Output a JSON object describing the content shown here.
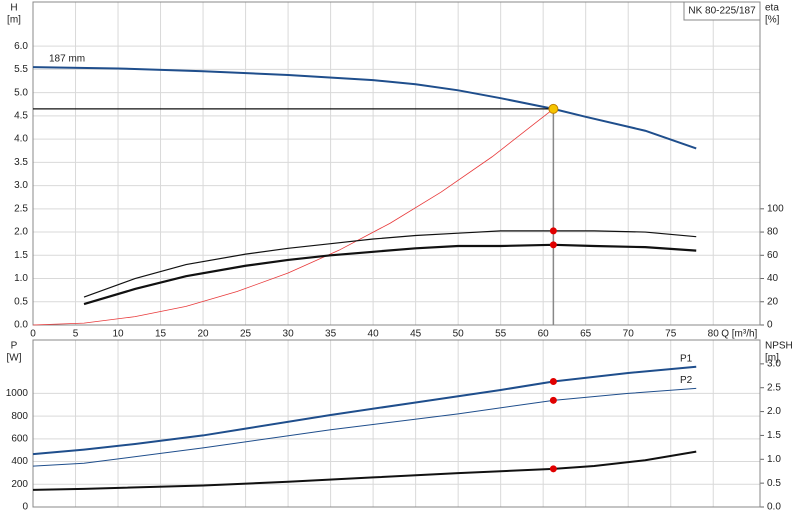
{
  "chart_data": [
    {
      "type": "line",
      "title": "NK 80-225/187",
      "y_label": "H",
      "y_unit": "[m]",
      "y2_label": "eta",
      "y2_unit": "[%]",
      "x_label": "Q [m³/h]",
      "xlim": [
        0,
        85.5
      ],
      "xticks": [
        0,
        5,
        10,
        15,
        20,
        25,
        30,
        35,
        40,
        45,
        50,
        55,
        60,
        65,
        70,
        75,
        80
      ],
      "ylim": [
        0,
        6.95
      ],
      "yticks": [
        {
          "value": 0,
          "label": "0.0"
        },
        0.5,
        {
          "value": 1,
          "label": "1.0"
        },
        1.5,
        {
          "value": 2,
          "label": "2.0"
        },
        2.5,
        {
          "value": 3,
          "label": "3.0"
        },
        3.5,
        {
          "value": 4,
          "label": "4.0"
        },
        4.5,
        {
          "value": 5,
          "label": "5.0"
        },
        5.5,
        {
          "value": 6,
          "label": "6.0"
        }
      ],
      "y2lim": [
        0,
        278
      ],
      "y2ticks": [
        0,
        20,
        40,
        60,
        80,
        100
      ],
      "grid": true,
      "series": [
        {
          "name": "187 mm",
          "color": "#1f4e8c",
          "width": 2,
          "x": [
            0,
            10,
            20,
            30,
            40,
            45,
            50,
            55,
            61.2,
            65,
            72,
            78
          ],
          "values": [
            5.55,
            5.52,
            5.46,
            5.38,
            5.27,
            5.18,
            5.05,
            4.88,
            4.65,
            4.48,
            4.18,
            3.8
          ]
        },
        {
          "color": "#e8393a",
          "width": 0.8,
          "x": [
            0,
            6,
            12,
            18,
            24,
            30,
            36,
            42,
            48,
            54,
            61.2
          ],
          "values": [
            0,
            0.04,
            0.18,
            0.4,
            0.72,
            1.12,
            1.61,
            2.19,
            2.86,
            3.62,
            4.65
          ]
        },
        {
          "color": "#111",
          "width": 1.2,
          "axis": "y2",
          "x": [
            6,
            12,
            18,
            25,
            30,
            35,
            40,
            45,
            50,
            55,
            61.2,
            66,
            72,
            78
          ],
          "values": [
            24,
            40,
            52,
            61,
            66,
            70,
            74,
            77,
            79,
            81,
            81,
            81,
            80,
            76
          ]
        },
        {
          "color": "#111",
          "width": 2.2,
          "axis": "y2",
          "x": [
            6,
            12,
            18,
            25,
            30,
            35,
            40,
            45,
            50,
            55,
            61.2,
            66,
            72,
            78
          ],
          "values": [
            18,
            31,
            42,
            51,
            56,
            60,
            63,
            66,
            68,
            68,
            69,
            68,
            67,
            64
          ]
        }
      ],
      "duty_point": {
        "x": 61.2,
        "y": 4.65,
        "color": "#f5c400"
      },
      "points": [
        {
          "x": 61.2,
          "y": 81,
          "axis": "y2",
          "color": "#e00000"
        },
        {
          "x": 61.2,
          "y": 69,
          "axis": "y2",
          "color": "#e00000"
        }
      ]
    },
    {
      "type": "line",
      "y_label": "P",
      "y_unit": "[W]",
      "y2_label": "NPSH",
      "y2_unit": "[m]",
      "xlim": [
        0,
        85.5
      ],
      "ylim": [
        0,
        1470
      ],
      "yticks": [
        0,
        200,
        400,
        600,
        800,
        1000
      ],
      "y2lim": [
        0,
        3.5
      ],
      "y2ticks": [
        {
          "value": 0,
          "label": "0.0"
        },
        0.5,
        {
          "value": 1,
          "label": "1.0"
        },
        1.5,
        {
          "value": 2,
          "label": "2.0"
        },
        2.5,
        {
          "value": 3,
          "label": "3.0"
        }
      ],
      "grid": true,
      "series": [
        {
          "name": "P1",
          "color": "#1f4e8c",
          "width": 2,
          "x": [
            0,
            6,
            12,
            20,
            25,
            35,
            45,
            55,
            61.2,
            70,
            78
          ],
          "values": [
            465,
            505,
            555,
            630,
            690,
            810,
            920,
            1030,
            1105,
            1180,
            1235
          ]
        },
        {
          "name": "P2",
          "color": "#1f4e8c",
          "width": 1,
          "x": [
            0,
            6,
            20,
            35,
            50,
            61.2,
            70,
            78
          ],
          "values": [
            360,
            385,
            520,
            680,
            820,
            939,
            1000,
            1044
          ]
        },
        {
          "color": "#111",
          "width": 2,
          "axis": "y2",
          "x": [
            0,
            6,
            20,
            30,
            40,
            50,
            61.2,
            66,
            72,
            78
          ],
          "values": [
            0.36,
            0.38,
            0.45,
            0.53,
            0.62,
            0.71,
            0.8,
            0.86,
            0.98,
            1.16
          ]
        }
      ],
      "points": [
        {
          "x": 61.2,
          "y": 1105,
          "color": "#e00000"
        },
        {
          "x": 61.2,
          "y": 939,
          "color": "#e00000"
        },
        {
          "x": 61.2,
          "y": 0.8,
          "axis": "y2",
          "color": "#e00000"
        }
      ]
    }
  ]
}
